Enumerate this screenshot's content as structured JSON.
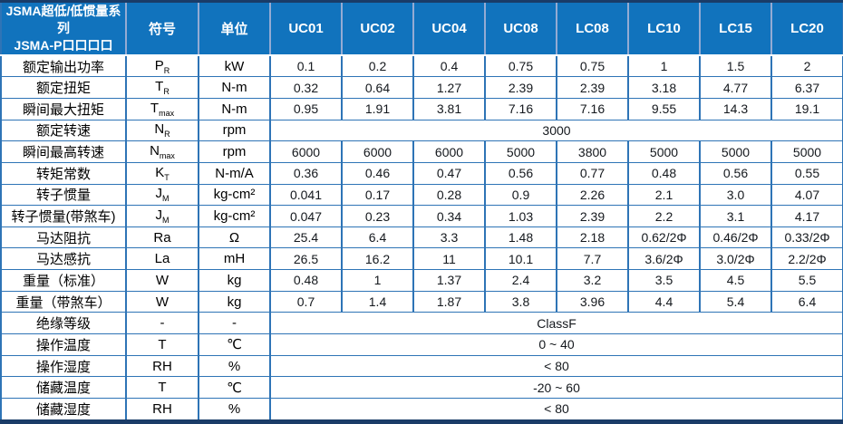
{
  "table": {
    "header": {
      "title_line1": "JSMA超低/低惯量系列",
      "title_line2": "JSMA-P口口口口",
      "symbol_col": "符号",
      "unit_col": "单位",
      "models": [
        "UC01",
        "UC02",
        "UC04",
        "UC08",
        "LC08",
        "LC10",
        "LC15",
        "LC20"
      ]
    },
    "rows": [
      {
        "label": "额定输出功率",
        "sym": "P",
        "sub": "R",
        "unit": "kW",
        "values": [
          "0.1",
          "0.2",
          "0.4",
          "0.75",
          "0.75",
          "1",
          "1.5",
          "2"
        ]
      },
      {
        "label": "额定扭矩",
        "sym": "T",
        "sub": "R",
        "unit": "N-m",
        "values": [
          "0.32",
          "0.64",
          "1.27",
          "2.39",
          "2.39",
          "3.18",
          "4.77",
          "6.37"
        ]
      },
      {
        "label": "瞬间最大扭矩",
        "sym": "T",
        "sub": "max",
        "unit": "N-m",
        "values": [
          "0.95",
          "1.91",
          "3.81",
          "7.16",
          "7.16",
          "9.55",
          "14.3",
          "19.1"
        ]
      },
      {
        "label": "额定转速",
        "sym": "N",
        "sub": "R",
        "unit": "rpm",
        "merged": "3000"
      },
      {
        "label": "瞬间最高转速",
        "sym": "N",
        "sub": "max",
        "unit": "rpm",
        "values": [
          "6000",
          "6000",
          "6000",
          "5000",
          "3800",
          "5000",
          "5000",
          "5000"
        ]
      },
      {
        "label": "转矩常数",
        "sym": "K",
        "sub": "T",
        "unit": "N-m/A",
        "values": [
          "0.36",
          "0.46",
          "0.47",
          "0.56",
          "0.77",
          "0.48",
          "0.56",
          "0.55"
        ]
      },
      {
        "label": "转子惯量",
        "sym": "J",
        "sub": "M",
        "unit": "kg-cm²",
        "values": [
          "0.041",
          "0.17",
          "0.28",
          "0.9",
          "2.26",
          "2.1",
          "3.0",
          "4.07"
        ]
      },
      {
        "label": "转子惯量(带煞车)",
        "sym": "J",
        "sub": "M",
        "unit": "kg-cm²",
        "values": [
          "0.047",
          "0.23",
          "0.34",
          "1.03",
          "2.39",
          "2.2",
          "3.1",
          "4.17"
        ]
      },
      {
        "label": "马达阻抗",
        "sym": "Ra",
        "unit": "Ω",
        "values": [
          "25.4",
          "6.4",
          "3.3",
          "1.48",
          "2.18",
          "0.62/2Φ",
          "0.46/2Φ",
          "0.33/2Φ"
        ]
      },
      {
        "label": "马达感抗",
        "sym": "La",
        "unit": "mH",
        "values": [
          "26.5",
          "16.2",
          "11",
          "10.1",
          "7.7",
          "3.6/2Φ",
          "3.0/2Φ",
          "2.2/2Φ"
        ]
      },
      {
        "label": "重量（标准）",
        "sym": "W",
        "unit": "kg",
        "values": [
          "0.48",
          "1",
          "1.37",
          "2.4",
          "3.2",
          "3.5",
          "4.5",
          "5.5"
        ]
      },
      {
        "label": "重量（带煞车）",
        "sym": "W",
        "unit": "kg",
        "values": [
          "0.7",
          "1.4",
          "1.87",
          "3.8",
          "3.96",
          "4.4",
          "5.4",
          "6.4"
        ]
      },
      {
        "label": "绝缘等级",
        "sym": "-",
        "unit": "-",
        "merged": "ClassF"
      },
      {
        "label": "操作温度",
        "sym": "T",
        "unit": "℃",
        "merged": "0 ~ 40"
      },
      {
        "label": "操作湿度",
        "sym": "RH",
        "unit": "%",
        "merged": "< 80"
      },
      {
        "label": "储藏温度",
        "sym": "T",
        "unit": "℃",
        "merged": "-20 ~ 60"
      },
      {
        "label": "储藏湿度",
        "sym": "RH",
        "unit": "%",
        "merged": "< 80"
      }
    ],
    "colors": {
      "header_bg": "#1173bd",
      "header_separator": "#94abd3",
      "border": "#2e74b6",
      "outer_border": "#1a3c68",
      "label_text": "#000000",
      "value_text": "#14181d"
    }
  }
}
